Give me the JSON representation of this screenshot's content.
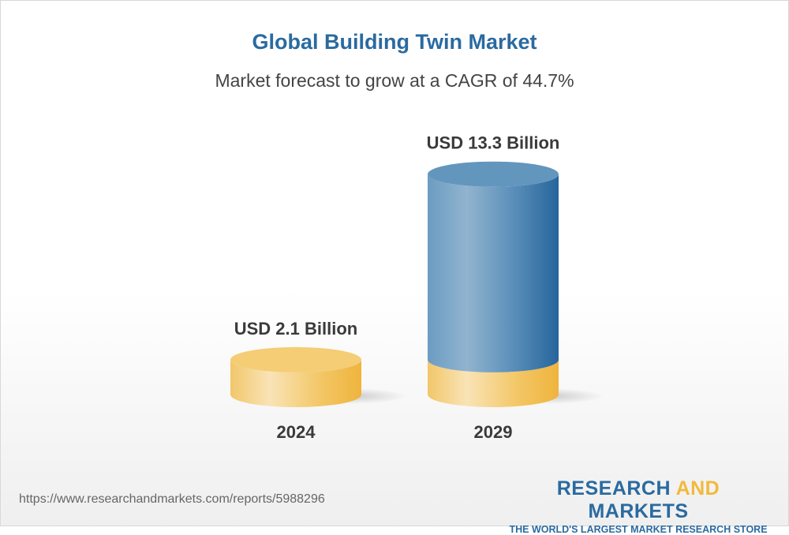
{
  "title": "Global Building Twin Market",
  "subtitle": "Market forecast to grow at a CAGR of 44.7%",
  "chart_data": {
    "type": "bar",
    "style": "3d-cylinder",
    "categories": [
      "2024",
      "2029"
    ],
    "values": [
      2.1,
      13.3
    ],
    "data_labels": [
      "USD 2.1 Billion",
      "USD 13.3 Billion"
    ],
    "unit": "USD Billion",
    "colors": {
      "base": "#f2c35a",
      "growth": "#2f6ea3"
    }
  },
  "footer": {
    "url": "https://www.researchandmarkets.com/reports/5988296",
    "logo": {
      "part1": "RESEARCH ",
      "part2": "AND",
      "part3": " MARKETS",
      "tagline": "THE WORLD'S LARGEST MARKET RESEARCH STORE"
    }
  }
}
